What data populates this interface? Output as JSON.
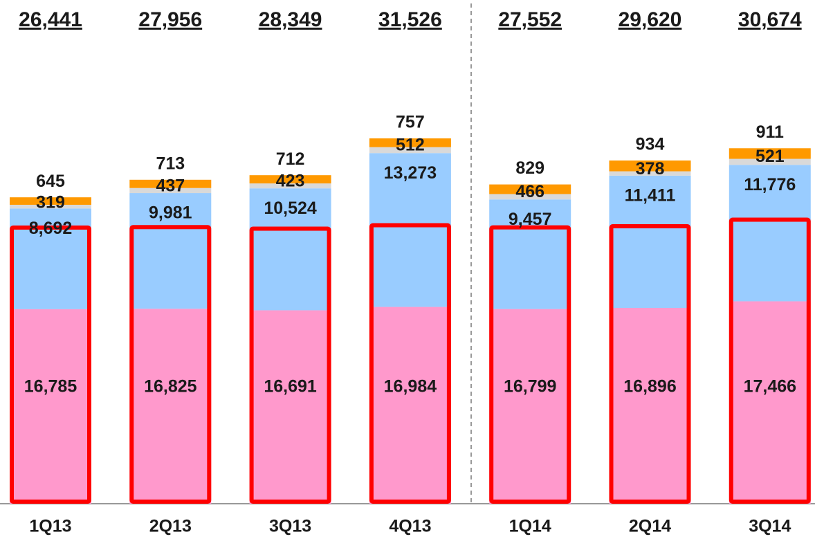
{
  "chart_data": {
    "type": "stacked-bar",
    "categories": [
      "1Q13",
      "2Q13",
      "3Q13",
      "4Q13",
      "1Q14",
      "2Q14",
      "3Q14"
    ],
    "series": [
      {
        "color": "#ff99cc",
        "values": [
          16785,
          16825,
          16691,
          16984,
          16799,
          16896,
          17466
        ],
        "value_labels": [
          "16,785",
          "16,825",
          "16,691",
          "16,984",
          "16,799",
          "16,896",
          "17,466"
        ]
      },
      {
        "color": "#99ccff",
        "values": [
          8692,
          9981,
          10524,
          13273,
          9457,
          11411,
          11776
        ],
        "value_labels": [
          "8,692",
          "9,981",
          "10,524",
          "13,273",
          "9,457",
          "11,411",
          "11,776"
        ]
      },
      {
        "color": "#d9d9d9",
        "values": [
          319,
          437,
          423,
          512,
          466,
          378,
          521
        ]
      },
      {
        "color": "#ff9900",
        "values": [
          645,
          713,
          712,
          757,
          829,
          934,
          911
        ]
      }
    ],
    "totals": [
      26441,
      27956,
      28349,
      31526,
      27552,
      29620,
      30674
    ],
    "total_labels": [
      "26,441",
      "27,956",
      "28,349",
      "31,526",
      "27,552",
      "29,620",
      "30,674"
    ],
    "highlight_color": "#ff0000"
  }
}
